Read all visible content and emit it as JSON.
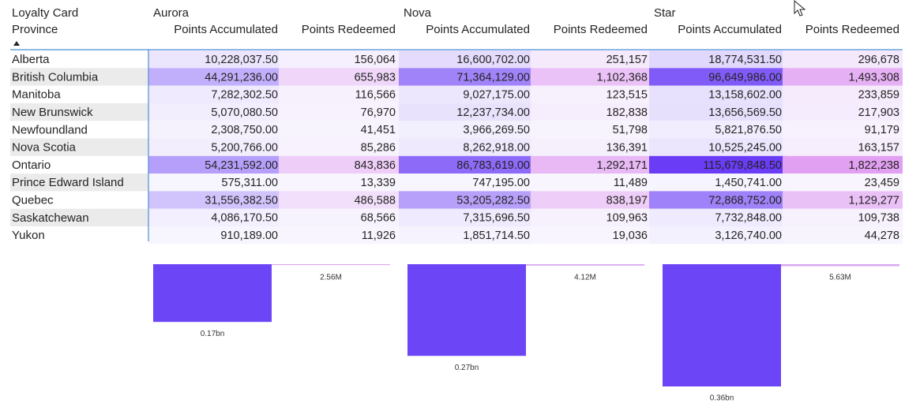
{
  "table": {
    "corner": [
      "Loyalty Card",
      "Province"
    ],
    "groups": [
      "Aurora",
      "Nova",
      "Star"
    ],
    "columns": [
      "Points Accumulated",
      "Points Redeemed",
      "Points Accumulated",
      "Points Redeemed",
      "Points Accumulated",
      "Points Redeemed"
    ],
    "rows": [
      {
        "province": "Alberta",
        "cells": [
          "10,228,037.50",
          "156,064",
          "16,600,702.00",
          "251,157",
          "18,774,531.50",
          "296,678"
        ]
      },
      {
        "province": "British Columbia",
        "cells": [
          "44,291,236.00",
          "655,983",
          "71,364,129.00",
          "1,102,368",
          "96,649,986.00",
          "1,493,308"
        ]
      },
      {
        "province": "Manitoba",
        "cells": [
          "7,282,302.50",
          "116,566",
          "9,027,175.00",
          "123,515",
          "13,158,602.00",
          "233,859"
        ]
      },
      {
        "province": "New Brunswick",
        "cells": [
          "5,070,080.50",
          "76,970",
          "12,237,734.00",
          "182,838",
          "13,656,569.50",
          "217,903"
        ]
      },
      {
        "province": "Newfoundland",
        "cells": [
          "2,308,750.00",
          "41,451",
          "3,966,269.50",
          "51,798",
          "5,821,876.50",
          "91,179"
        ]
      },
      {
        "province": "Nova Scotia",
        "cells": [
          "5,200,766.00",
          "85,286",
          "8,262,918.00",
          "136,391",
          "10,525,245.00",
          "163,157"
        ]
      },
      {
        "province": "Ontario",
        "cells": [
          "54,231,592.00",
          "843,836",
          "86,783,619.00",
          "1,292,171",
          "115,679,848.50",
          "1,822,238"
        ]
      },
      {
        "province": "Prince Edward Island",
        "cells": [
          "575,311.00",
          "13,339",
          "747,195.00",
          "11,489",
          "1,450,741.00",
          "23,459"
        ]
      },
      {
        "province": "Quebec",
        "cells": [
          "31,556,382.50",
          "486,588",
          "53,205,282.50",
          "838,197",
          "72,868,752.00",
          "1,129,277"
        ]
      },
      {
        "province": "Saskatchewan",
        "cells": [
          "4,086,170.50",
          "68,566",
          "7,315,696.50",
          "109,963",
          "7,732,848.00",
          "109,738"
        ]
      },
      {
        "province": "Yukon",
        "cells": [
          "910,189.00",
          "11,926",
          "1,851,714.50",
          "19,036",
          "3,126,740.00",
          "44,278"
        ]
      }
    ]
  },
  "charts": [
    {
      "type": "bar",
      "values": [
        170000000,
        2560000
      ],
      "value_labels": [
        "0.17bn",
        "2.56M"
      ],
      "colors": [
        "#6b45f6",
        "#d9a6ef"
      ]
    },
    {
      "type": "bar",
      "values": [
        270000000,
        4120000
      ],
      "value_labels": [
        "0.27bn",
        "4.12M"
      ],
      "colors": [
        "#6b45f6",
        "#d9a6ef"
      ]
    },
    {
      "type": "bar",
      "values": [
        360000000,
        5630000
      ],
      "value_labels": [
        "0.36bn",
        "5.63M"
      ],
      "colors": [
        "#6b45f6",
        "#d9a6ef"
      ]
    }
  ]
}
